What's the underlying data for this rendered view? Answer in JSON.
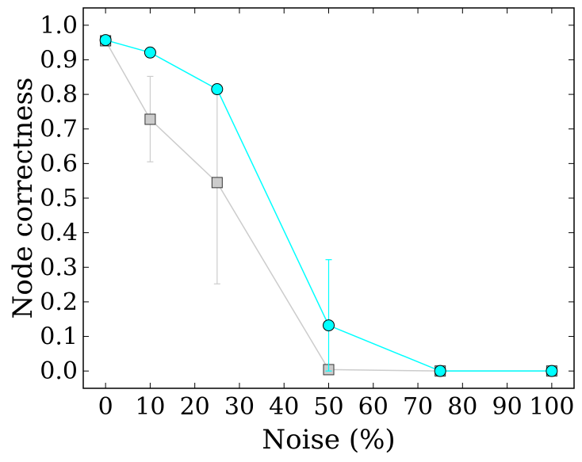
{
  "chart_data": {
    "type": "line",
    "title": "",
    "xlabel": "Noise (%)",
    "ylabel": "Node correctness",
    "xlim": [
      -5,
      105
    ],
    "ylim": [
      -0.05,
      1.05
    ],
    "grid": false,
    "x_ticks": [
      0,
      10,
      20,
      30,
      40,
      50,
      60,
      70,
      80,
      90,
      100
    ],
    "y_ticks": [
      "0.0",
      "0.1",
      "0.2",
      "0.3",
      "0.4",
      "0.5",
      "0.6",
      "0.7",
      "0.8",
      "0.9",
      "1.0"
    ],
    "series": [
      {
        "marker": "square",
        "line_color": "#cccccc",
        "marker_color": "#cccccc",
        "x": [
          0,
          10,
          25,
          50,
          75,
          100
        ],
        "y": [
          0.955,
          0.728,
          0.545,
          0.004,
          0.0,
          0.0
        ],
        "err_low": [
          null,
          0.605,
          0.252,
          null,
          null,
          null
        ],
        "err_high": [
          null,
          0.852,
          0.81,
          null,
          null,
          null
        ]
      },
      {
        "marker": "circle",
        "line_color": "#00ffff",
        "marker_color": "#00ffff",
        "x": [
          0,
          10,
          25,
          50,
          75,
          100
        ],
        "y": [
          0.957,
          0.921,
          0.815,
          0.132,
          0.0,
          0.0
        ],
        "err_low": [
          null,
          null,
          null,
          0.0,
          null,
          null
        ],
        "err_high": [
          null,
          null,
          null,
          0.322,
          null,
          null
        ]
      }
    ]
  }
}
